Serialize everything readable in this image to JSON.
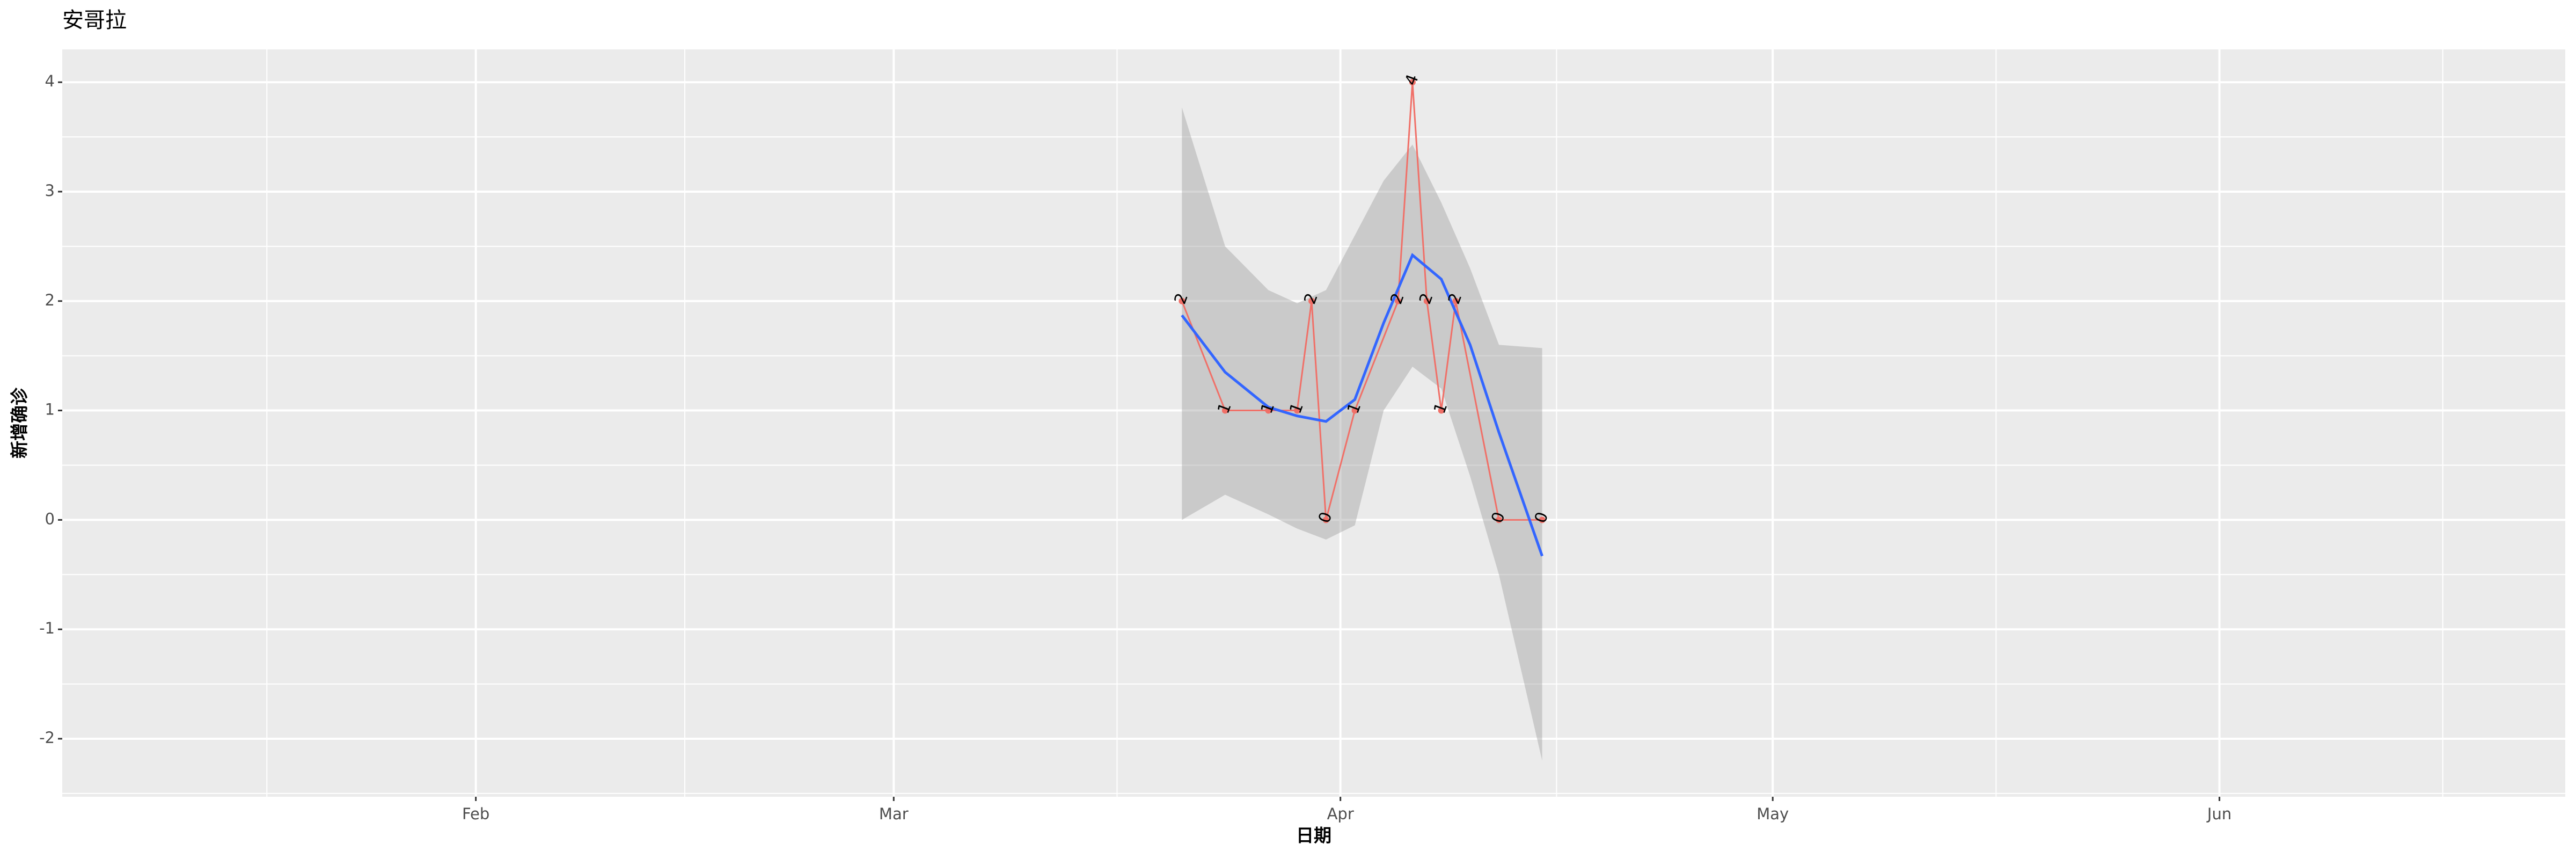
{
  "chart_data": {
    "type": "line",
    "title": "安哥拉",
    "x_label": "日期",
    "y_label": "新增确诊",
    "x": [
      81,
      84,
      87,
      89,
      90,
      91,
      93,
      96,
      97,
      98,
      99,
      100,
      103,
      106
    ],
    "values": [
      2,
      1,
      1,
      1,
      2,
      0,
      1,
      2,
      4,
      2,
      1,
      2,
      0,
      0
    ],
    "color": "#f07068",
    "smooth": {
      "color": "#3366ff",
      "band_color": "#999999",
      "x": [
        81,
        84,
        87,
        89,
        91,
        93,
        95,
        97,
        99,
        101,
        103,
        106
      ],
      "y": [
        1.87,
        1.35,
        1.03,
        0.95,
        0.9,
        1.1,
        1.8,
        2.42,
        2.2,
        1.6,
        0.8,
        -0.33
      ],
      "upper": [
        3.77,
        2.5,
        2.1,
        1.98,
        2.1,
        2.6,
        3.1,
        3.43,
        2.9,
        2.3,
        1.6,
        1.57
      ],
      "lower": [
        0,
        0.23,
        0.05,
        -0.08,
        -0.18,
        -0.05,
        1.0,
        1.4,
        1.2,
        0.4,
        -0.5,
        -2.2
      ]
    },
    "xlim": [
      3.3,
      177.0
    ],
    "xticks": [
      {
        "value": 32,
        "label": "Feb"
      },
      {
        "value": 61,
        "label": "Mar"
      },
      {
        "value": 92,
        "label": "Apr"
      },
      {
        "value": 122,
        "label": "May"
      },
      {
        "value": 153,
        "label": "Jun"
      }
    ],
    "ylim": [
      -2.53,
      4.3
    ],
    "yticks": [
      -2,
      -1,
      0,
      1,
      2,
      3,
      4
    ],
    "grid": true
  }
}
